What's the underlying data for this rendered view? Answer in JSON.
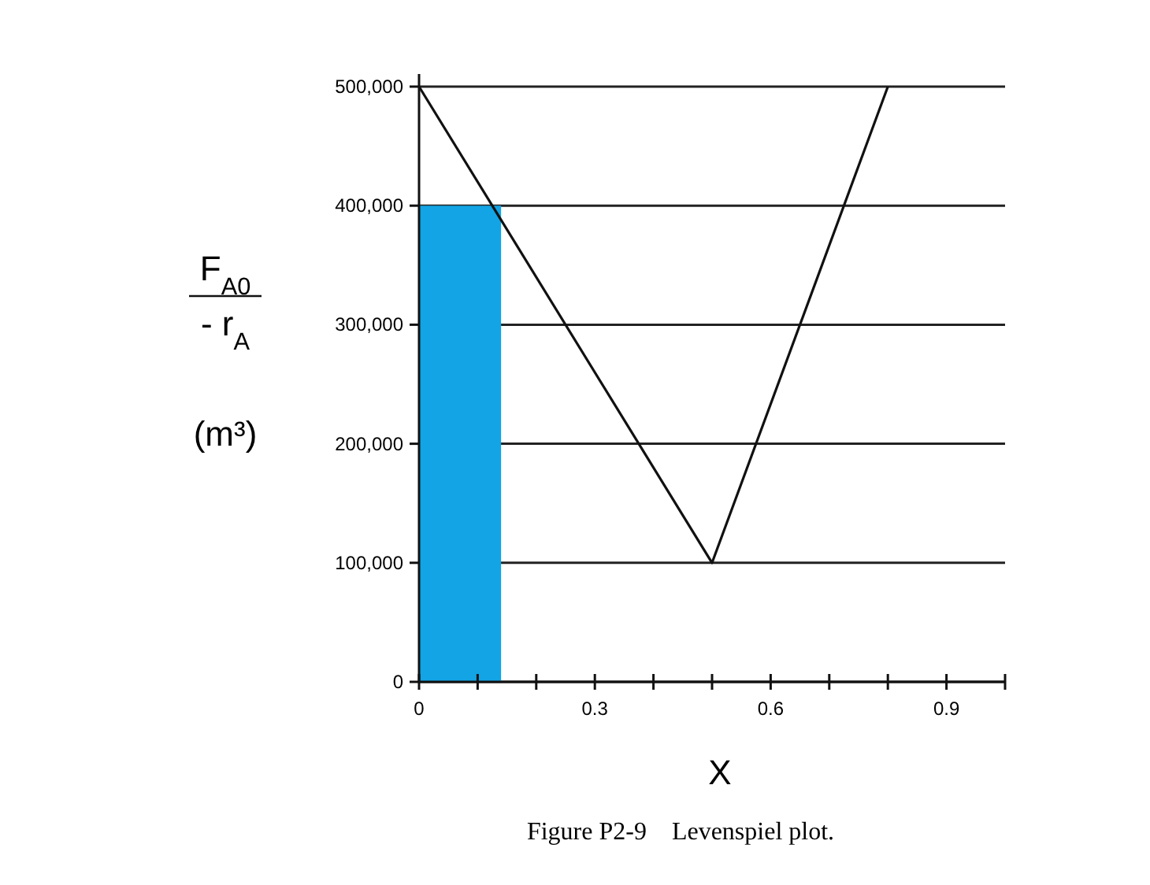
{
  "chart_data": {
    "type": "line",
    "xlabel": "X",
    "ylabel": "F$_{A0}$ - r$_{A}$ (m³)",
    "annotations": [
      "Figure P2-9    Levenspiel plot."
    ],
    "series": [
      {
        "type": "area",
        "color": "#12a4e4",
        "x": [
          0,
          0.14
        ],
        "values": [
          400000,
          400000
        ]
      },
      {
        "color": "#111111",
        "x": [
          0,
          0.5,
          0.8
        ],
        "values": [
          500000,
          100000,
          500000
        ]
      }
    ],
    "xlim": [
      0,
      1
    ],
    "ylim": [
      0,
      500000
    ],
    "xticks": [
      0,
      {
        "value": 0.1,
        "label": null
      },
      {
        "value": 0.2,
        "label": null
      },
      0.3,
      {
        "value": 0.4,
        "label": null
      },
      {
        "value": 0.5,
        "label": null
      },
      0.6,
      {
        "value": 0.7,
        "label": null
      },
      {
        "value": 0.8,
        "label": null
      },
      0.9,
      {
        "value": 1,
        "label": null
      }
    ],
    "yticks": [
      {
        "value": 0,
        "label": "0"
      },
      {
        "value": 100000,
        "label": "100,000"
      },
      {
        "value": 200000,
        "label": "200,000"
      },
      {
        "value": 300000,
        "label": "300,000"
      },
      {
        "value": 400000,
        "label": "400,000"
      },
      {
        "value": 500000,
        "label": "500,000"
      }
    ],
    "grid": "y",
    "marker": "none",
    "line_style": "solid"
  }
}
